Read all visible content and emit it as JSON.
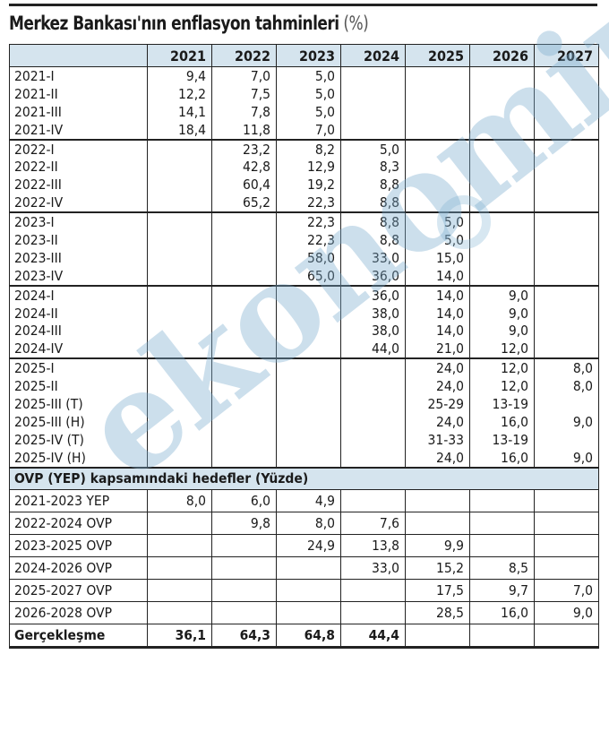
{
  "title": "Merkez Bankası'nın enflasyon tahminleri",
  "title_unit": "(%)",
  "watermark": "ekonomim",
  "colors": {
    "header_bg": "#d5e4ee",
    "watermark": "#78aacd",
    "border": "#222222"
  },
  "columns": [
    "",
    "2021",
    "2022",
    "2023",
    "2024",
    "2025",
    "2026",
    "2027"
  ],
  "groups": [
    [
      {
        "label": "2021-I",
        "values": [
          "9,4",
          "7,0",
          "5,0",
          "",
          "",
          "",
          ""
        ]
      },
      {
        "label": "2021-II",
        "values": [
          "12,2",
          "7,5",
          "5,0",
          "",
          "",
          "",
          ""
        ]
      },
      {
        "label": "2021-III",
        "values": [
          "14,1",
          "7,8",
          "5,0",
          "",
          "",
          "",
          ""
        ]
      },
      {
        "label": "2021-IV",
        "values": [
          "18,4",
          "11,8",
          "7,0",
          "",
          "",
          "",
          ""
        ]
      }
    ],
    [
      {
        "label": "2022-I",
        "values": [
          "",
          "23,2",
          "8,2",
          "5,0",
          "",
          "",
          ""
        ]
      },
      {
        "label": "2022-II",
        "values": [
          "",
          "42,8",
          "12,9",
          "8,3",
          "",
          "",
          ""
        ]
      },
      {
        "label": "2022-III",
        "values": [
          "",
          "60,4",
          "19,2",
          "8,8",
          "",
          "",
          ""
        ]
      },
      {
        "label": "2022-IV",
        "values": [
          "",
          "65,2",
          "22,3",
          "8,8",
          "",
          "",
          ""
        ]
      }
    ],
    [
      {
        "label": "2023-I",
        "values": [
          "",
          "",
          "22,3",
          "8,8",
          "5,0",
          "",
          ""
        ]
      },
      {
        "label": "2023-II",
        "values": [
          "",
          "",
          "22,3",
          "8,8",
          "5,0",
          "",
          ""
        ]
      },
      {
        "label": "2023-III",
        "values": [
          "",
          "",
          "58,0",
          "33,0",
          "15,0",
          "",
          ""
        ]
      },
      {
        "label": "2023-IV",
        "values": [
          "",
          "",
          "65,0",
          "36,0",
          "14,0",
          "",
          ""
        ]
      }
    ],
    [
      {
        "label": "2024-I",
        "values": [
          "",
          "",
          "",
          "36,0",
          "14,0",
          "9,0",
          ""
        ]
      },
      {
        "label": "2024-II",
        "values": [
          "",
          "",
          "",
          "38,0",
          "14,0",
          "9,0",
          ""
        ]
      },
      {
        "label": "2024-III",
        "values": [
          "",
          "",
          "",
          "38,0",
          "14,0",
          "9,0",
          ""
        ]
      },
      {
        "label": "2024-IV",
        "values": [
          "",
          "",
          "",
          "44,0",
          "21,0",
          "12,0",
          ""
        ]
      }
    ],
    [
      {
        "label": "2025-I",
        "values": [
          "",
          "",
          "",
          "",
          "24,0",
          "12,0",
          "8,0"
        ]
      },
      {
        "label": "2025-II",
        "values": [
          "",
          "",
          "",
          "",
          "24,0",
          "12,0",
          "8,0"
        ]
      },
      {
        "label": "2025-III (T)",
        "values": [
          "",
          "",
          "",
          "",
          "25-29",
          "13-19",
          ""
        ]
      },
      {
        "label": "2025-III (H)",
        "values": [
          "",
          "",
          "",
          "",
          "24,0",
          "16,0",
          "9,0"
        ]
      },
      {
        "label": "2025-IV (T)",
        "values": [
          "",
          "",
          "",
          "",
          "31-33",
          "13-19",
          ""
        ]
      },
      {
        "label": "2025-IV (H)",
        "values": [
          "",
          "",
          "",
          "",
          "24,0",
          "16,0",
          "9,0"
        ]
      }
    ]
  ],
  "targets_section_title": "OVP (YEP) kapsamındaki hedefler (Yüzde)",
  "targets": [
    {
      "label": "2021-2023 YEP",
      "values": [
        "8,0",
        "6,0",
        "4,9",
        "",
        "",
        "",
        ""
      ]
    },
    {
      "label": "2022-2024 OVP",
      "values": [
        "",
        "9,8",
        "8,0",
        "7,6",
        "",
        "",
        ""
      ]
    },
    {
      "label": "2023-2025 OVP",
      "values": [
        "",
        "",
        "24,9",
        "13,8",
        "9,9",
        "",
        ""
      ]
    },
    {
      "label": "2024-2026 OVP",
      "values": [
        "",
        "",
        "",
        "33,0",
        "15,2",
        "8,5",
        ""
      ]
    },
    {
      "label": "2025-2027 OVP",
      "values": [
        "",
        "",
        "",
        "",
        "17,5",
        "9,7",
        "7,0"
      ]
    },
    {
      "label": "2026-2028 OVP",
      "values": [
        "",
        "",
        "",
        "",
        "28,5",
        "16,0",
        "9,0"
      ]
    }
  ],
  "actual": {
    "label": "Gerçekleşme",
    "values": [
      "36,1",
      "64,3",
      "64,8",
      "44,4",
      "",
      "",
      ""
    ]
  }
}
